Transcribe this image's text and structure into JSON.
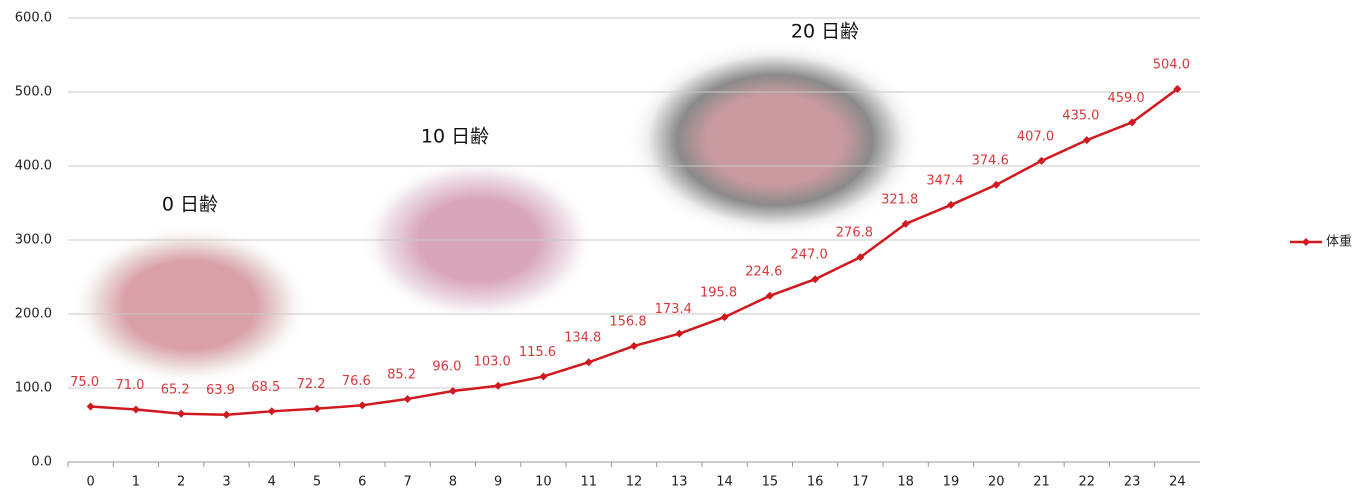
{
  "chart_data": {
    "type": "line",
    "categories": [
      "0",
      "1",
      "2",
      "3",
      "4",
      "5",
      "6",
      "7",
      "8",
      "9",
      "10",
      "11",
      "12",
      "13",
      "14",
      "15",
      "16",
      "17",
      "18",
      "19",
      "20",
      "21",
      "22",
      "23",
      "24"
    ],
    "series": [
      {
        "name": "体重",
        "color": "#d0191e",
        "values": [
          75.0,
          71.0,
          65.2,
          63.9,
          68.5,
          72.2,
          76.6,
          85.2,
          96.0,
          103.0,
          115.6,
          134.8,
          156.8,
          173.4,
          195.8,
          224.6,
          247.0,
          276.8,
          321.8,
          347.4,
          374.6,
          407.0,
          435.0,
          459.0,
          504.0
        ],
        "value_labels": [
          "75.0",
          "71.0",
          "65.2",
          "63.9",
          "68.5",
          "72.2",
          "76.6",
          "85.2",
          "96.0",
          "103.0",
          "115.6",
          "134.8",
          "156.8",
          "173.4",
          "195.8",
          "224.6",
          "247.0",
          "276.8",
          "321.8",
          "347.4",
          "374.6",
          "407.0",
          "435.0",
          "459.0",
          "504.0"
        ]
      }
    ],
    "ylim": [
      0,
      600
    ],
    "yticks": [
      {
        "value": 0,
        "label": "0.0"
      },
      {
        "value": 100,
        "label": "100.0"
      },
      {
        "value": 200,
        "label": "200.0"
      },
      {
        "value": 300,
        "label": "300.0"
      },
      {
        "value": 400,
        "label": "400.0"
      },
      {
        "value": 500,
        "label": "500.0"
      },
      {
        "value": 600,
        "label": "600.0"
      }
    ],
    "grid": true,
    "legend": "right",
    "annotations": [
      "0 日齢",
      "10 日齢",
      "20 日齢"
    ]
  }
}
